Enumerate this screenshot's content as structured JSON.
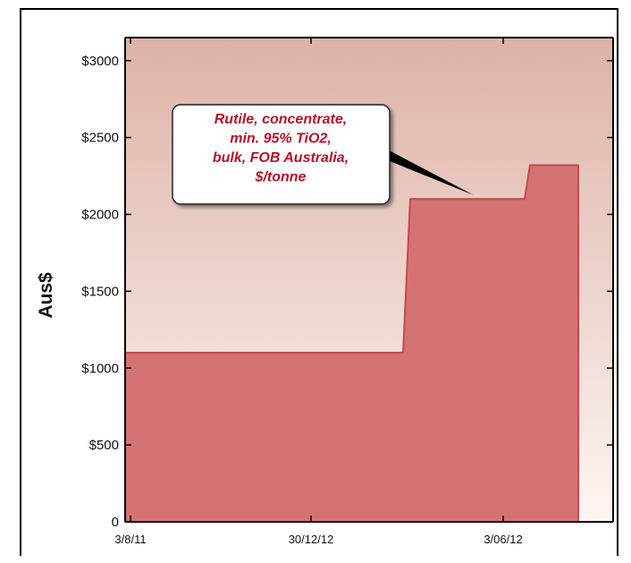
{
  "chart_data": {
    "type": "area",
    "title": "",
    "xlabel": "",
    "ylabel": "Aus$",
    "ylim": [
      0,
      3150
    ],
    "y_ticks": [
      0,
      500,
      1000,
      1500,
      2000,
      2500,
      3000
    ],
    "y_tick_labels": [
      "0",
      "$500",
      "$1000",
      "$1500",
      "$2000",
      "$2500",
      "$3000"
    ],
    "x_tick_labels": [
      "3/8/11",
      "30/12/12",
      "3/06/12"
    ],
    "series": [
      {
        "step_values": [
          1100,
          2100,
          2320
        ]
      }
    ],
    "annotation": {
      "lines": [
        "Rutile, concentrate,",
        "min. 95% TiO2,",
        "bulk, FOB Australia,",
        "$/tonne"
      ]
    },
    "grid": false,
    "legend": "none",
    "colors": {
      "fill": "#d57374",
      "stroke": "#c24a4d",
      "background_top": "#ddb2a6",
      "background_bottom": "#fdf5f2",
      "annotation_text": "#b3122a"
    }
  }
}
